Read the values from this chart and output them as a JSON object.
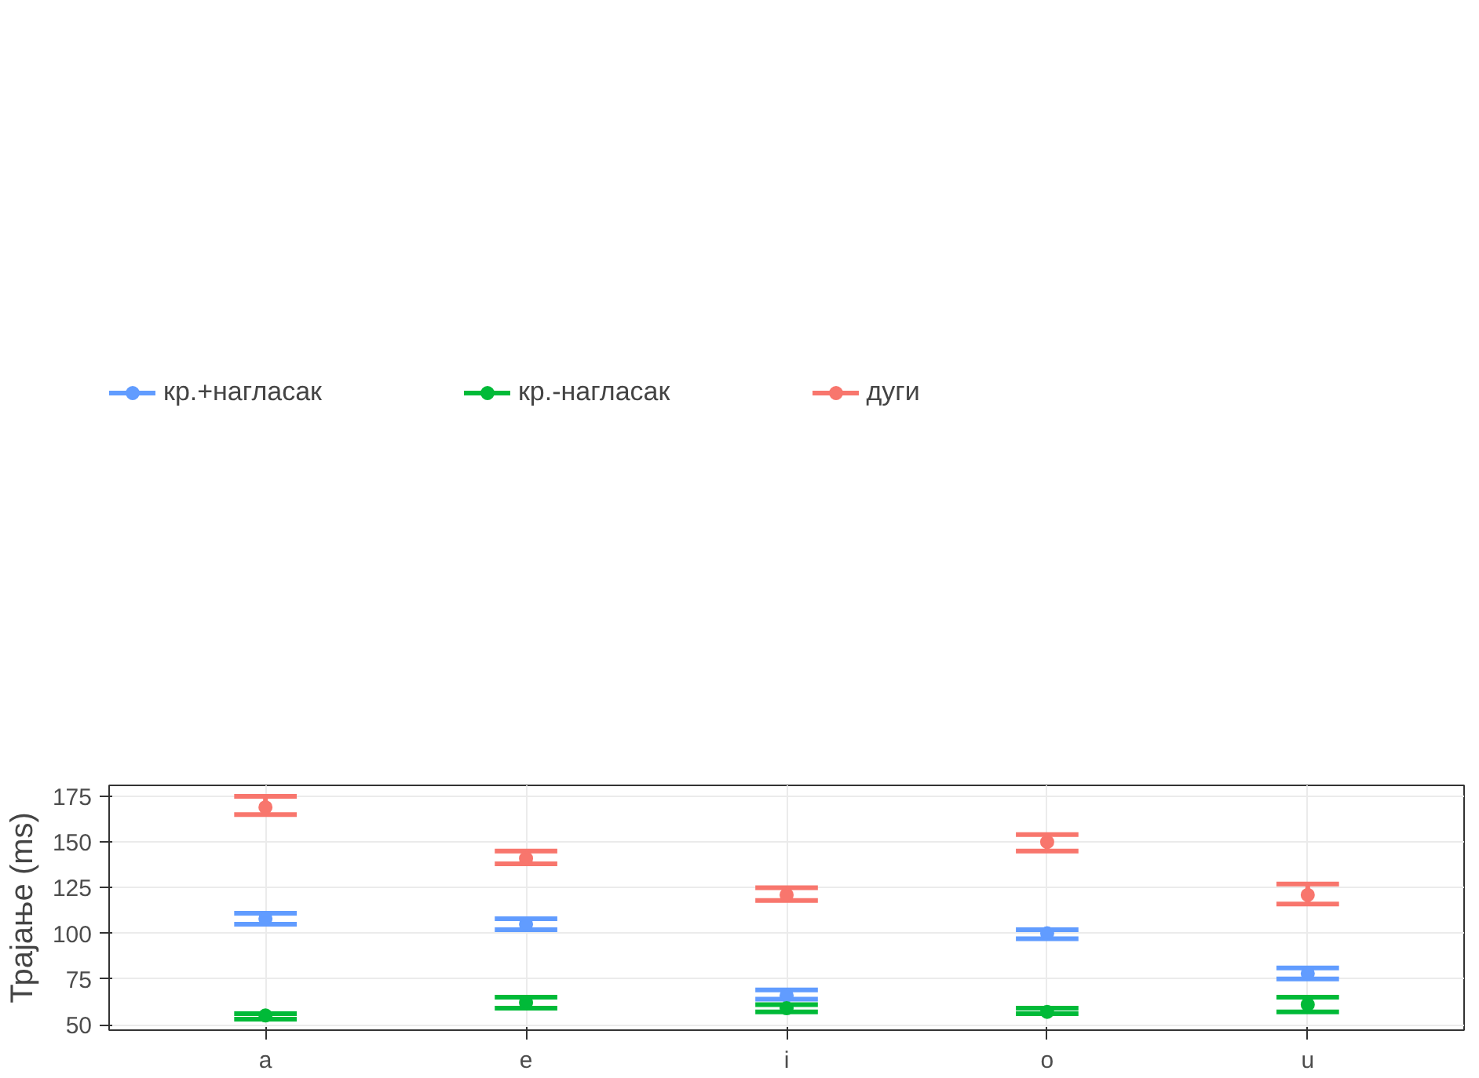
{
  "chart_data": {
    "type": "scatter",
    "ylabel": "Трајање (ms)",
    "categories": [
      "a",
      "e",
      "i",
      "o",
      "u"
    ],
    "series": [
      {
        "name": "кр.+нагласак",
        "color": "#619cff",
        "values": [
          108,
          105,
          66,
          100,
          78
        ],
        "errors": [
          [
            105,
            111
          ],
          [
            102,
            108
          ],
          [
            64,
            69
          ],
          [
            97,
            102
          ],
          [
            75,
            81
          ]
        ]
      },
      {
        "name": "кр.-нагласак",
        "color": "#00ba38",
        "values": [
          55,
          62,
          59,
          57,
          61
        ],
        "errors": [
          [
            53,
            56
          ],
          [
            59,
            65
          ],
          [
            57,
            61
          ],
          [
            56,
            59
          ],
          [
            57,
            65
          ]
        ]
      },
      {
        "name": "дуги",
        "color": "#f8766d",
        "values": [
          169,
          141,
          121,
          150,
          121
        ],
        "errors": [
          [
            165,
            175
          ],
          [
            138,
            145
          ],
          [
            118,
            125
          ],
          [
            145,
            154
          ],
          [
            116,
            127
          ]
        ]
      }
    ],
    "ylim": [
      47,
      181
    ],
    "yticks": [
      50,
      75,
      100,
      125,
      150,
      175
    ],
    "grid": true,
    "legend": "top",
    "marker": "circle"
  }
}
